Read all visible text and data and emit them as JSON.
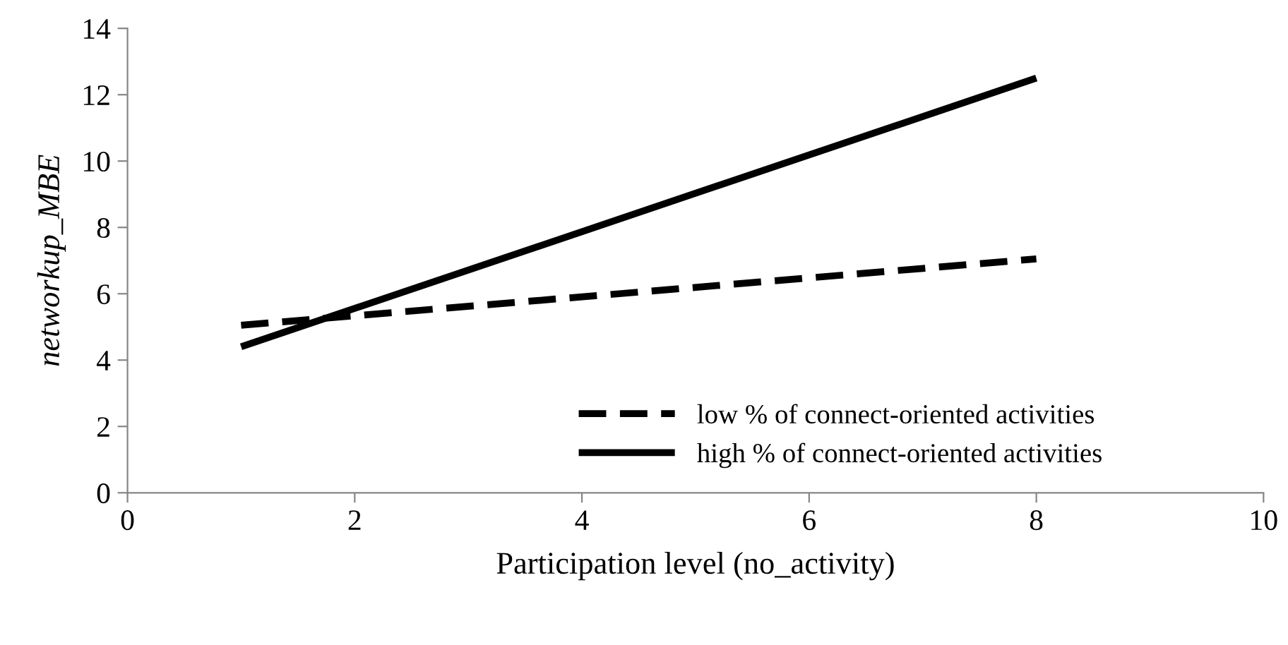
{
  "chart_data": {
    "type": "line",
    "xlabel": "Participation level (no_activity)",
    "ylabel": "networkup_MBE",
    "xlim": [
      0,
      10
    ],
    "xticks": [
      0,
      2,
      4,
      6,
      8,
      10
    ],
    "ylim": [
      0,
      14
    ],
    "yticks": [
      0,
      2,
      4,
      6,
      8,
      10,
      12,
      14
    ],
    "x": [
      1,
      8
    ],
    "grid": false,
    "legend": "bottom right",
    "marker": "none",
    "series": [
      {
        "name": "low % of connect-oriented activities",
        "color": "#000000",
        "line_style": "dashed",
        "values": [
          5.05,
          7.05
        ]
      },
      {
        "name": "high % of connect-oriented activities",
        "color": "#000000",
        "line_style": "solid",
        "values": [
          4.4,
          12.5
        ]
      }
    ]
  }
}
